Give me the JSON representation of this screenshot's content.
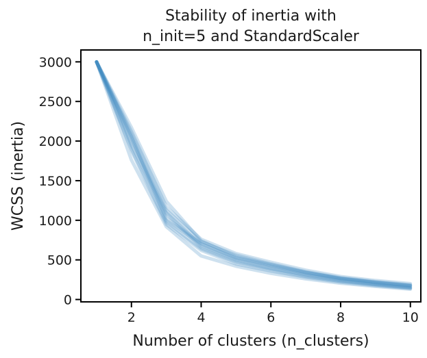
{
  "chart_data": {
    "type": "line",
    "title_lines": [
      "Stability of inertia with",
      "n_init=5 and StandardScaler"
    ],
    "xlabel": "Number of clusters (n_clusters)",
    "ylabel": "WCSS (inertia)",
    "x": [
      1,
      2,
      3,
      4,
      5,
      6,
      7,
      8,
      9,
      10
    ],
    "xlim": [
      0.55,
      10.3
    ],
    "ylim": [
      -30,
      3150
    ],
    "xticks": [
      2,
      4,
      6,
      8,
      10
    ],
    "yticks": [
      0,
      500,
      1000,
      1500,
      2000,
      2500,
      3000
    ],
    "grid": false,
    "line_color": "#3a87bf",
    "series": [
      {
        "values": [
          3000,
          2120,
          1170,
          760,
          580,
          470,
          370,
          290,
          240,
          200
        ]
      },
      {
        "values": [
          3000,
          2080,
          1130,
          730,
          560,
          450,
          350,
          275,
          225,
          185
        ]
      },
      {
        "values": [
          3000,
          2040,
          1000,
          700,
          520,
          420,
          330,
          260,
          210,
          170
        ]
      },
      {
        "values": [
          3000,
          1950,
          1080,
          660,
          490,
          390,
          305,
          240,
          190,
          150
        ]
      },
      {
        "values": [
          3000,
          1880,
          950,
          620,
          450,
          360,
          280,
          220,
          175,
          140
        ]
      },
      {
        "values": [
          3000,
          1760,
          920,
          550,
          420,
          330,
          260,
          205,
          165,
          130
        ]
      },
      {
        "values": [
          3000,
          2170,
          1240,
          740,
          540,
          430,
          340,
          270,
          215,
          175
        ]
      },
      {
        "values": [
          3000,
          2000,
          1100,
          680,
          500,
          400,
          315,
          250,
          200,
          160
        ]
      },
      {
        "values": [
          3000,
          2060,
          1030,
          710,
          530,
          440,
          345,
          265,
          220,
          180
        ]
      },
      {
        "values": [
          3000,
          1900,
          980,
          640,
          470,
          375,
          295,
          230,
          185,
          145
        ]
      }
    ]
  }
}
